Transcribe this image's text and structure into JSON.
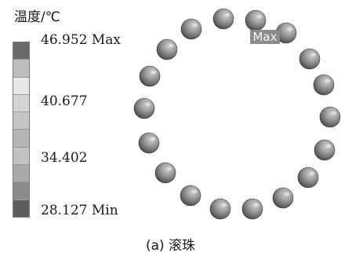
{
  "legend": {
    "title": "温度/℃",
    "labels": {
      "max": "46.952 Max",
      "mid_high": "40.677",
      "mid_low": "34.402",
      "min": "28.127 Min"
    },
    "bands": [
      "#6a6a6a",
      "#bdbdbd",
      "#e8e8e8",
      "#d4d4d4",
      "#c6c6c6",
      "#b5b5b5",
      "#c2c2c2",
      "#a9a9a9",
      "#8b8b8b",
      "#5d5d5d"
    ]
  },
  "marker": {
    "label": "Max"
  },
  "caption": "(a) 滚珠",
  "colors": {
    "ball_dark": "#3e3e3e",
    "ball_mid": "#6b6b6b",
    "ball_light": "#a6a6a6",
    "ball_highlight": "#cfcfcf"
  }
}
